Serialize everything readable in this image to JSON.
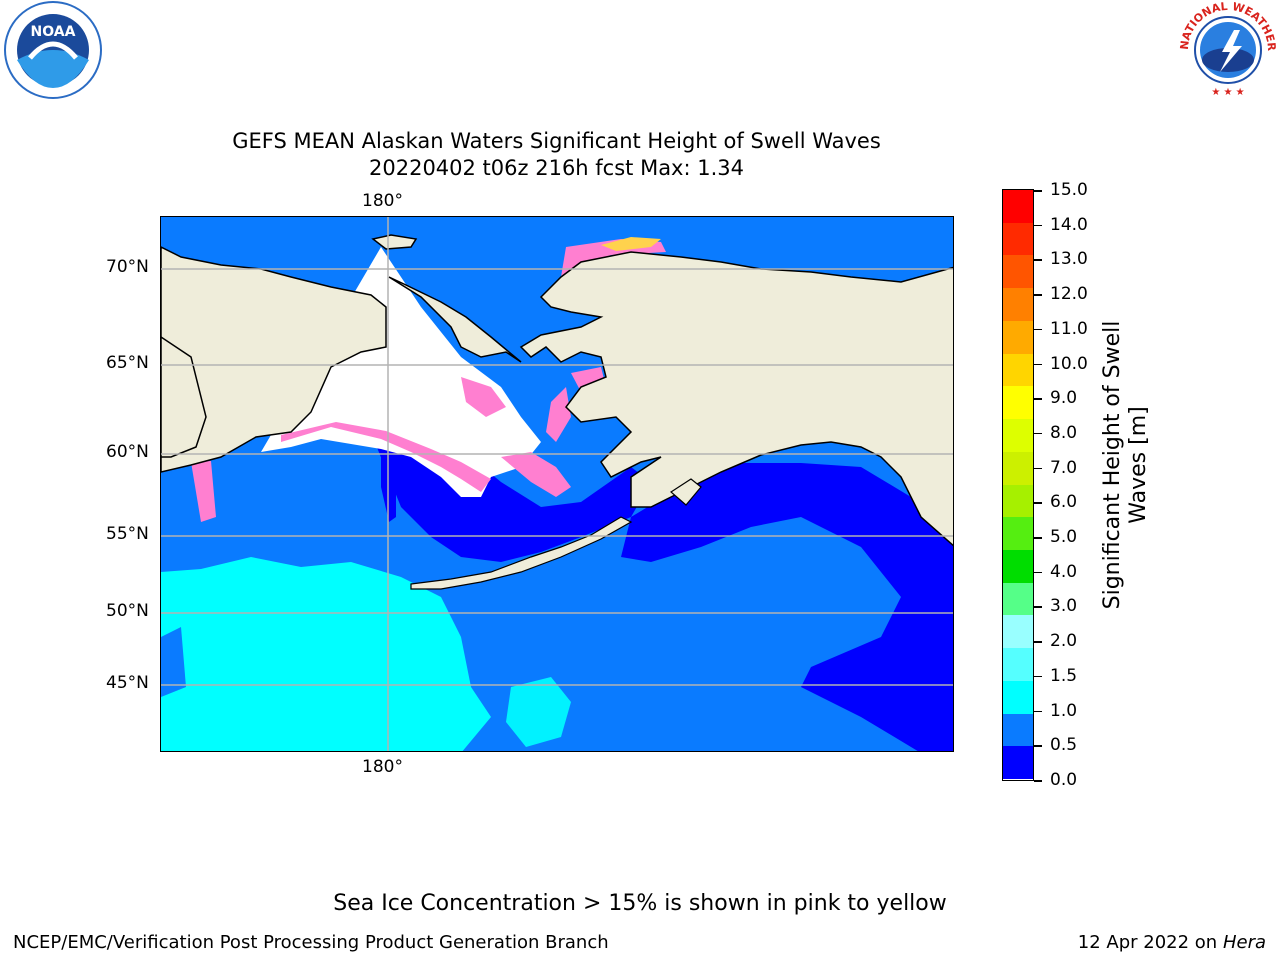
{
  "header": {
    "title_line1": "GEFS MEAN Alaskan Waters Significant Height of Swell Waves",
    "title_line2": "20220402 t06z 216h fcst   Max: 1.34"
  },
  "logos": {
    "left": "noaa-logo",
    "right": "national-weather-service-logo",
    "right_text": "NATIONAL WEATHER SERVICE"
  },
  "map": {
    "top_lon_label": "180°",
    "bottom_lon_label": "180°",
    "lat_labels": [
      "70°N",
      "65°N",
      "60°N",
      "55°N",
      "50°N",
      "45°N"
    ],
    "colors": {
      "land": "#efedda",
      "ocean_0_0_5": "#0000ff",
      "ocean_0_5_1_0": "#0a7bff",
      "ocean_1_0_1_5": "#00ffff",
      "sea_ice_low": "#ff7fd0",
      "sea_ice_high": "#ffd24d",
      "grid": "#b3b3b3"
    }
  },
  "colorbar": {
    "label": "Significant Height of Swell Waves [m]",
    "ticks": [
      "15.0",
      "14.0",
      "13.0",
      "12.0",
      "11.0",
      "10.0",
      "9.0",
      "8.0",
      "7.0",
      "6.0",
      "5.0",
      "4.0",
      "3.0",
      "2.0",
      "1.5",
      "1.0",
      "0.5",
      "0.0"
    ],
    "colors": [
      "#ff0000",
      "#ff2a00",
      "#ff5500",
      "#ff8000",
      "#ffaa00",
      "#ffd500",
      "#ffff00",
      "#ddff00",
      "#ccf000",
      "#a6f000",
      "#55ee11",
      "#00dd00",
      "#55ff88",
      "#99ffff",
      "#55ffff",
      "#00ffff",
      "#0a7bff",
      "#0000ff"
    ]
  },
  "footer": {
    "note": "Sea Ice Concentration > 15% is shown in pink to yellow",
    "left": "NCEP/EMC/Verification Post Processing Product Generation Branch",
    "right_prefix": "12 Apr 2022 on ",
    "right_italic": "Hera"
  }
}
